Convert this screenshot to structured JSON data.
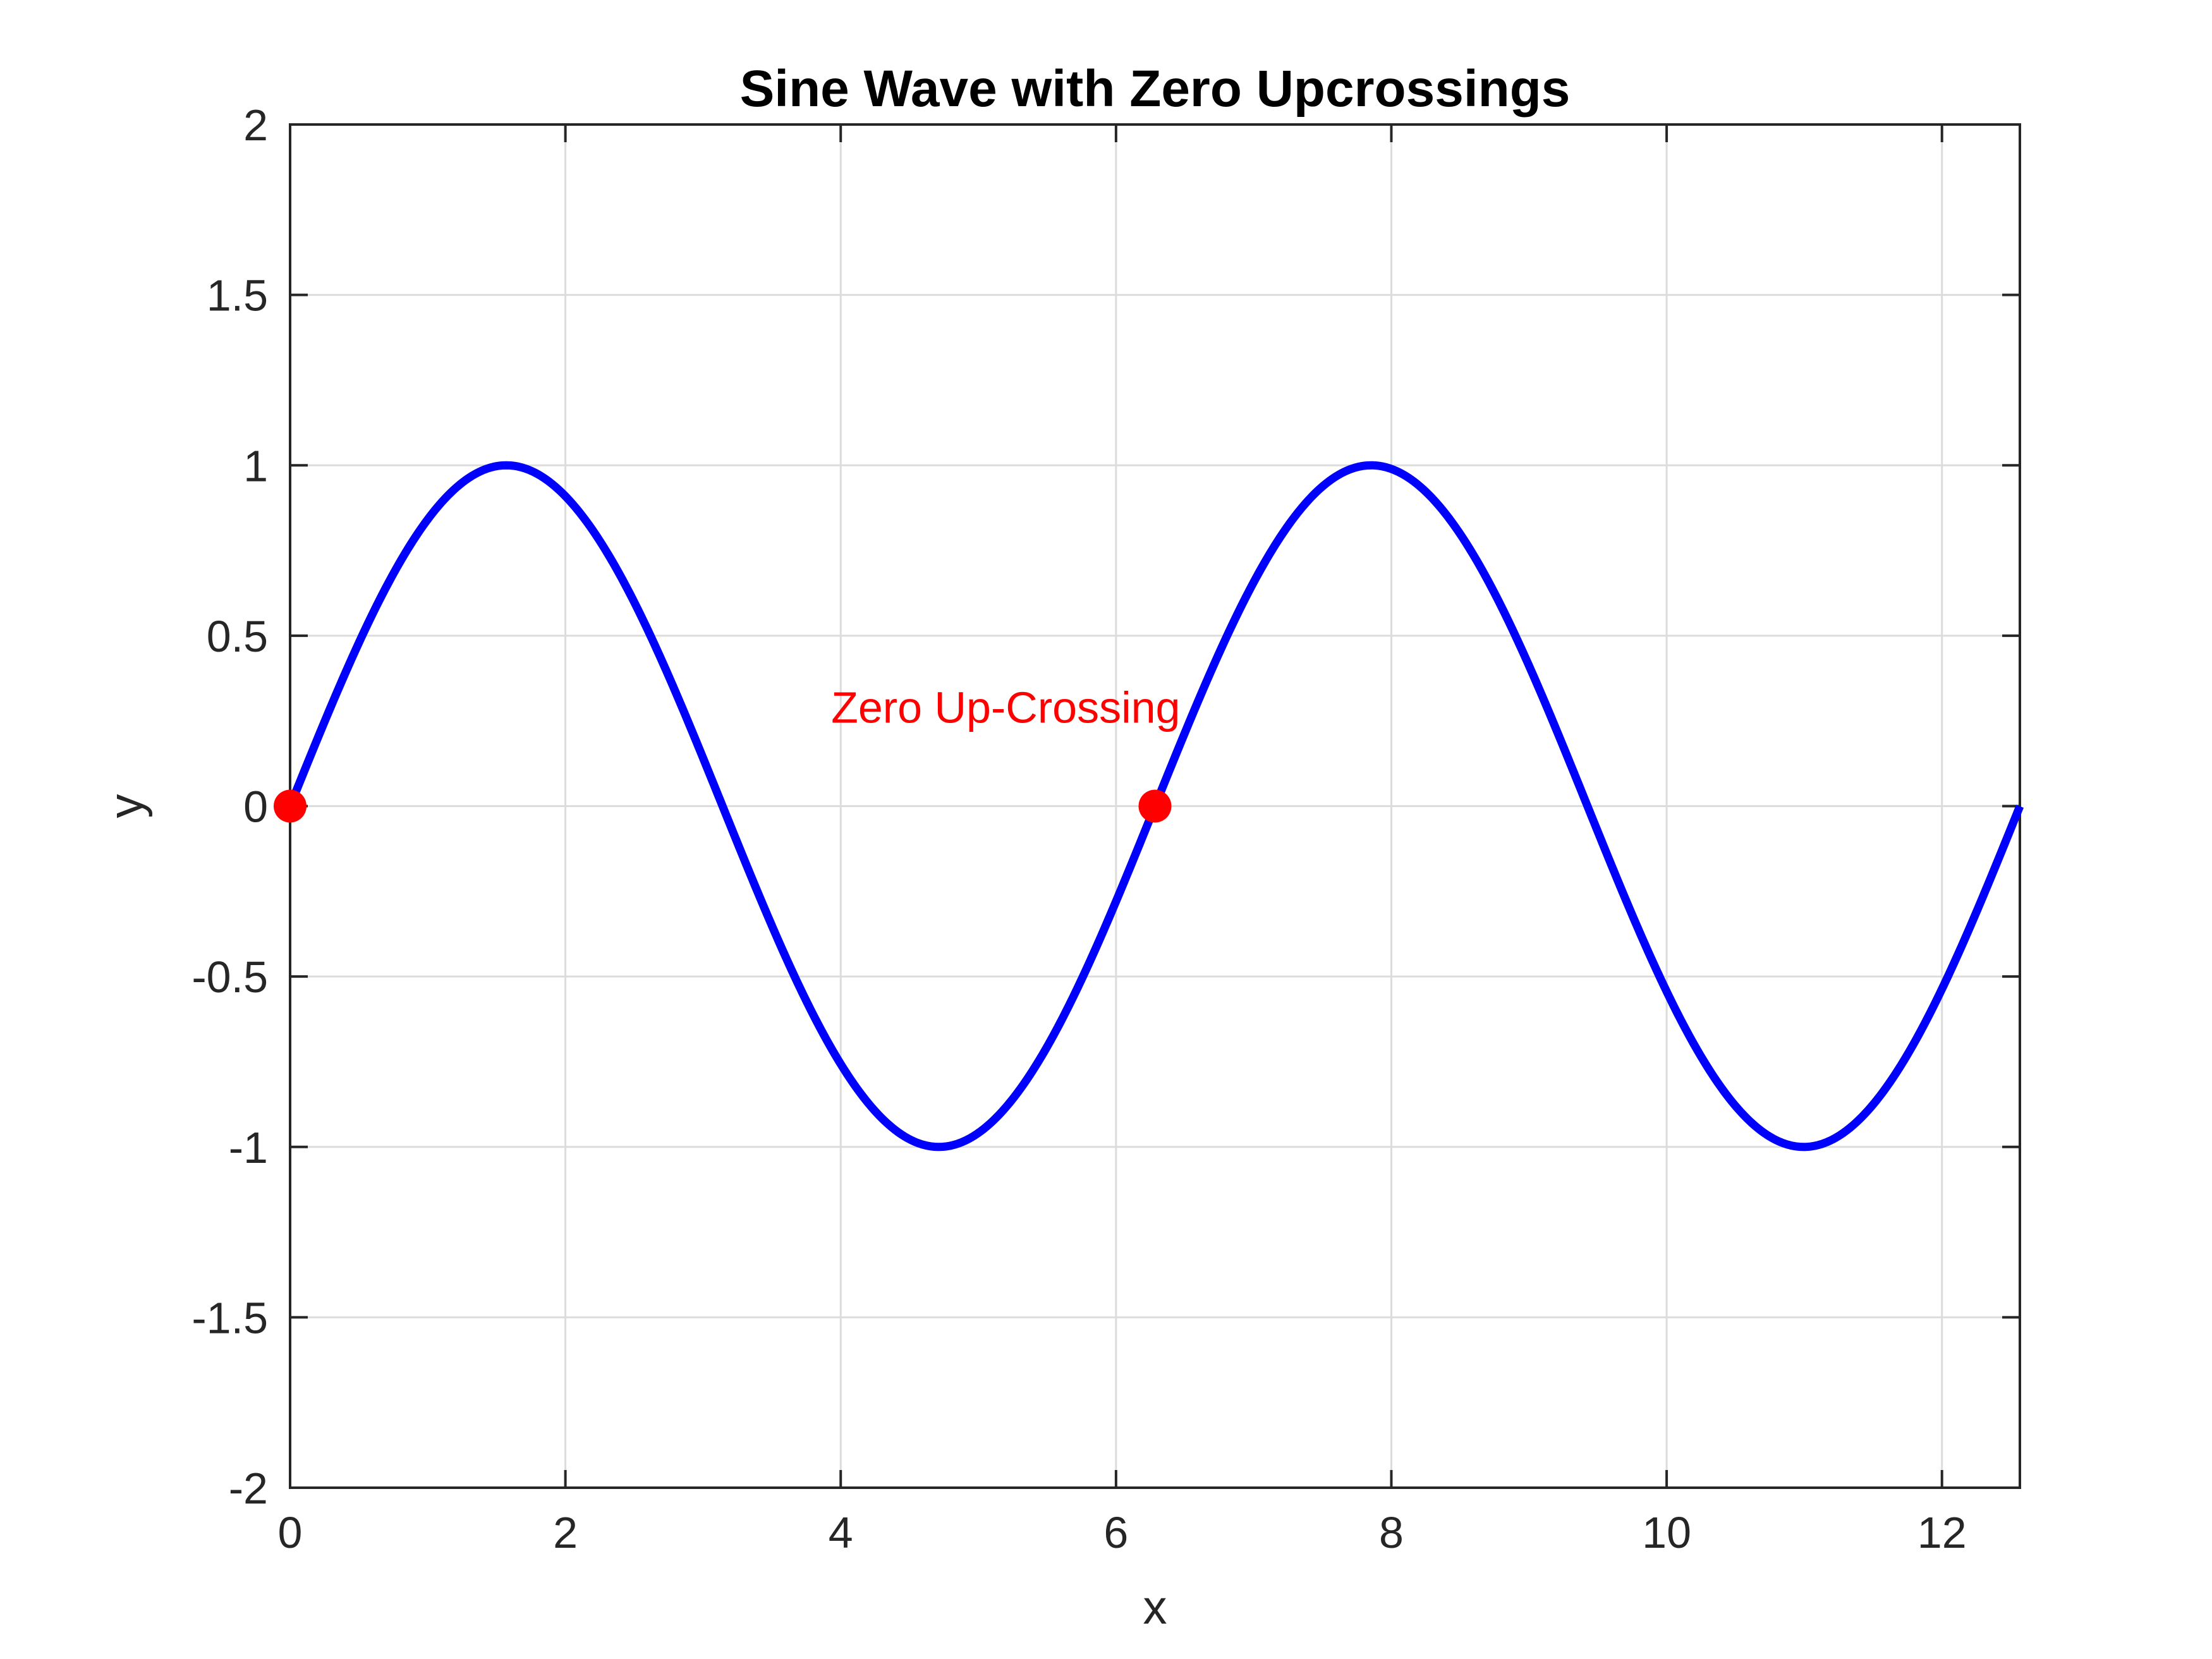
{
  "chart_data": {
    "type": "line",
    "title": "Sine Wave with Zero Upcrossings",
    "xlabel": "x",
    "ylabel": "y",
    "xlim": [
      0,
      12.566
    ],
    "ylim": [
      -2,
      2
    ],
    "xticks": [
      0,
      2,
      4,
      6,
      8,
      10,
      12
    ],
    "yticks": [
      -2,
      -1.5,
      -1,
      -0.5,
      0,
      0.5,
      1,
      1.5,
      2
    ],
    "xtick_labels": [
      "0",
      "2",
      "4",
      "6",
      "8",
      "10",
      "12"
    ],
    "ytick_labels": [
      "-2",
      "-1.5",
      "-1",
      "-0.5",
      "0",
      "0.5",
      "1",
      "1.5",
      "2"
    ],
    "grid": true,
    "series": [
      {
        "function": "sin(x)",
        "x_range": [
          0,
          12.566
        ],
        "color": "#0000ff"
      }
    ],
    "markers": {
      "color": "#ff0000",
      "points": [
        {
          "x": 0,
          "y": 0
        },
        {
          "x": 6.283,
          "y": 0
        }
      ]
    },
    "annotations": [
      {
        "text": "Zero Up-Crossing",
        "x": 6.283,
        "y": 0.3,
        "color": "#ff0000"
      }
    ]
  }
}
